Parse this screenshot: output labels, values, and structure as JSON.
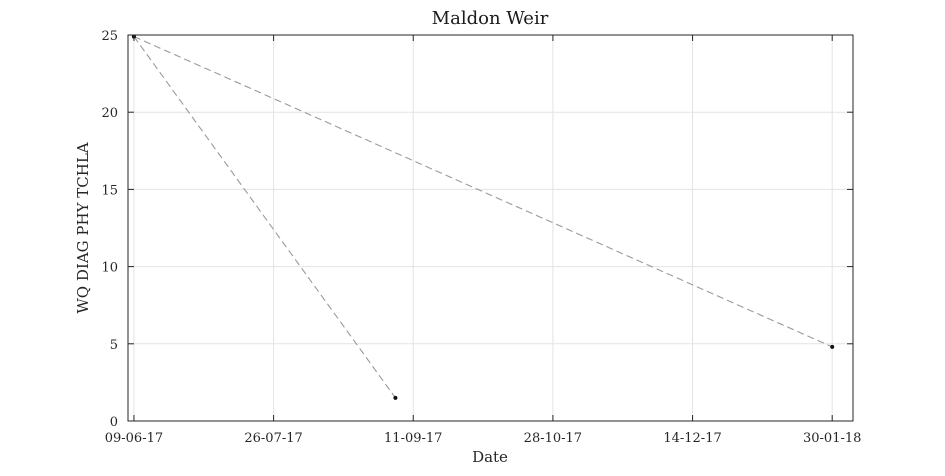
{
  "chart_data": {
    "type": "line",
    "title": "Maldon Weir",
    "xlabel": "Date",
    "ylabel": "WQ DIAG PHY TCHLA",
    "x_type": "date",
    "xlim": [
      "2017-06-07",
      "2018-02-06"
    ],
    "ylim": [
      0,
      25
    ],
    "xticks": [
      "2017-06-09",
      "2017-07-26",
      "2017-09-11",
      "2017-10-28",
      "2017-12-14",
      "2018-01-30"
    ],
    "xtick_labels": [
      "09-06-17",
      "26-07-17",
      "11-09-17",
      "28-10-17",
      "14-12-17",
      "30-01-18"
    ],
    "yticks": [
      0,
      5,
      10,
      15,
      20,
      25
    ],
    "ytick_labels": [
      "0",
      "5",
      "10",
      "15",
      "20",
      "25"
    ],
    "grid": true,
    "line_style": "dashed",
    "line_color": "#9a9a9a",
    "marker_color": "#111111",
    "series": [
      {
        "x": [
          "2017-06-09",
          "2017-09-05"
        ],
        "y": [
          24.9,
          1.5
        ]
      },
      {
        "x": [
          "2017-06-09",
          "2018-01-30"
        ],
        "y": [
          24.9,
          4.8
        ]
      }
    ]
  }
}
